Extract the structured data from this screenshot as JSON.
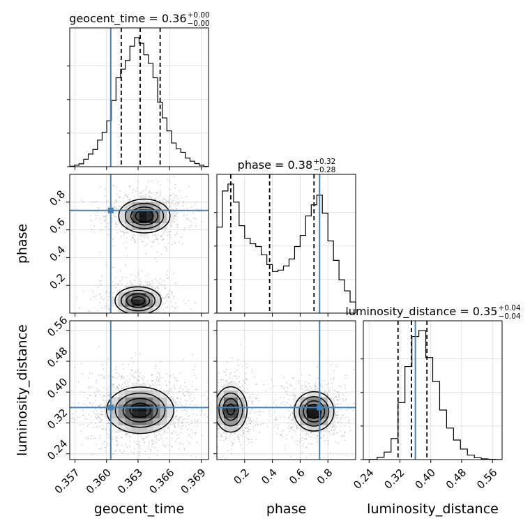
{
  "chart_data": {
    "type": "corner",
    "parameters": [
      "geocent_time",
      "phase",
      "luminosity_distance"
    ],
    "truth_color": "#4682b4",
    "grid": true,
    "marginals": [
      {
        "parameter": "geocent_time",
        "title": {
          "base": "geocent_time = 0.36",
          "plus": "+0.00",
          "minus": "−0.00"
        },
        "range": [
          0.3565,
          0.3697
        ],
        "median": 0.3632,
        "quantiles": [
          0.3614,
          0.3632,
          0.3651
        ],
        "truth": 0.3604,
        "hist_values": [
          0.3,
          1.0,
          2.0,
          5.2,
          8.8,
          12.0,
          18.5,
          24.0,
          32.0,
          46.0,
          62.0,
          68.0,
          74.0,
          84.0,
          90.0,
          86.0,
          78.0,
          72.0,
          62.0,
          45.0,
          34.0,
          25.0,
          16.5,
          12.5,
          10.0,
          6.0,
          3.8,
          2.2,
          1.0,
          0.2
        ]
      },
      {
        "parameter": "phase",
        "title": {
          "base": "phase = 0.38",
          "plus": "+0.32",
          "minus": "−0.28"
        },
        "range": [
          0.0,
          1.0
        ],
        "median": 0.38,
        "quantiles": [
          0.1,
          0.38,
          0.7
        ],
        "truth": 0.74,
        "hist_values": [
          62.0,
          88.0,
          93.0,
          80.0,
          63.0,
          54.0,
          50.0,
          48.0,
          42.0,
          35.0,
          30.0,
          31.0,
          34.0,
          39.0,
          48.0,
          56.0,
          70.0,
          78.0,
          85.0,
          72.0,
          52.0,
          38.0,
          24.0,
          16.0,
          8.0
        ]
      },
      {
        "parameter": "luminosity_distance",
        "title": {
          "base": "luminosity_distance = 0.35",
          "plus": "+0.04",
          "minus": "−0.04"
        },
        "range": [
          0.225,
          0.585
        ],
        "median": 0.35,
        "quantiles": [
          0.315,
          0.35,
          0.39
        ],
        "truth": 0.36,
        "hist_values": [
          0.0,
          0.1,
          1.5,
          5.0,
          14.0,
          38.0,
          62.0,
          82.0,
          86.0,
          68.0,
          52.0,
          33.0,
          21.0,
          13.0,
          7.0,
          3.0,
          1.2,
          0.5,
          0.2,
          0.0
        ]
      }
    ],
    "joint_panels": [
      {
        "x": "geocent_time",
        "y": "phase",
        "modes": [
          {
            "x": 0.363,
            "y": 0.09,
            "sx": 0.0011,
            "sy": 0.05,
            "w": 0.48
          },
          {
            "x": 0.3636,
            "y": 0.7,
            "sx": 0.0012,
            "sy": 0.06,
            "w": 0.52
          }
        ],
        "truth": [
          0.3604,
          0.74
        ]
      },
      {
        "x": "geocent_time",
        "y": "luminosity_distance",
        "modes": [
          {
            "x": 0.3632,
            "y": 0.353,
            "sx": 0.0016,
            "sy": 0.03,
            "w": 1.0
          }
        ],
        "truth": [
          0.3604,
          0.36
        ]
      },
      {
        "x": "phase",
        "y": "luminosity_distance",
        "modes": [
          {
            "x": 0.1,
            "y": 0.355,
            "sx": 0.06,
            "sy": 0.03,
            "w": 0.46
          },
          {
            "x": 0.7,
            "y": 0.35,
            "sx": 0.07,
            "sy": 0.025,
            "w": 0.54
          }
        ],
        "truth": [
          0.74,
          0.36
        ]
      }
    ],
    "axis_ticks": {
      "geocent_time": [
        "0.357",
        "0.360",
        "0.363",
        "0.366",
        "0.369"
      ],
      "phase": [
        "0.2",
        "0.4",
        "0.6",
        "0.8"
      ],
      "luminosity_distance": [
        "0.24",
        "0.32",
        "0.40",
        "0.48",
        "0.56"
      ]
    },
    "axis_labels": {
      "x": [
        "geocent_time",
        "phase",
        "luminosity_distance"
      ],
      "y": [
        "phase",
        "luminosity_distance"
      ]
    }
  }
}
